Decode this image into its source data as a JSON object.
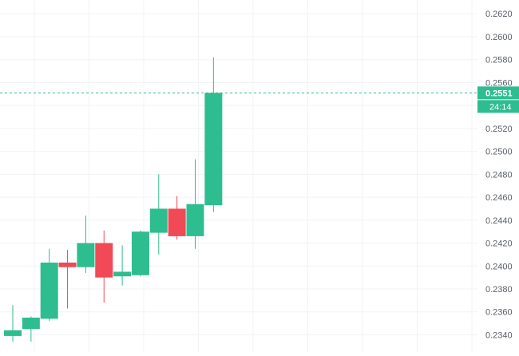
{
  "chart_data": {
    "type": "candlestick",
    "colors": {
      "up": "#2ebd8f",
      "down": "#ef4a56",
      "grid": "#f1f3f5",
      "axis_text": "#5a5f66",
      "badge_text": "#ffffff"
    },
    "y_axis": {
      "position": "right",
      "ylim": [
        0.2325,
        0.2632
      ],
      "tick_labels": [
        "0.2620",
        "0.2600",
        "0.2580",
        "0.2560",
        "0.2540",
        "0.2520",
        "0.2500",
        "0.2480",
        "0.2460",
        "0.2440",
        "0.2420",
        "0.2400",
        "0.2380",
        "0.2360",
        "0.2340"
      ]
    },
    "grid": true,
    "candles": [
      {
        "open": 0.2339,
        "high": 0.2366,
        "low": 0.2334,
        "close": 0.2344
      },
      {
        "open": 0.2345,
        "high": 0.2356,
        "low": 0.2334,
        "close": 0.2355
      },
      {
        "open": 0.2354,
        "high": 0.2415,
        "low": 0.2352,
        "close": 0.2403
      },
      {
        "open": 0.2403,
        "high": 0.2414,
        "low": 0.2363,
        "close": 0.2399
      },
      {
        "open": 0.2399,
        "high": 0.2444,
        "low": 0.2394,
        "close": 0.242
      },
      {
        "open": 0.242,
        "high": 0.2431,
        "low": 0.2368,
        "close": 0.239
      },
      {
        "open": 0.2391,
        "high": 0.2418,
        "low": 0.2383,
        "close": 0.2395
      },
      {
        "open": 0.2392,
        "high": 0.2431,
        "low": 0.2391,
        "close": 0.243
      },
      {
        "open": 0.2429,
        "high": 0.248,
        "low": 0.241,
        "close": 0.245
      },
      {
        "open": 0.245,
        "high": 0.2461,
        "low": 0.2423,
        "close": 0.2426
      },
      {
        "open": 0.2426,
        "high": 0.2493,
        "low": 0.2415,
        "close": 0.2454
      },
      {
        "open": 0.2453,
        "high": 0.2582,
        "low": 0.2447,
        "close": 0.2551
      }
    ],
    "current_price": {
      "value": 0.2551,
      "label": "0.2551",
      "countdown": "24:14"
    }
  }
}
